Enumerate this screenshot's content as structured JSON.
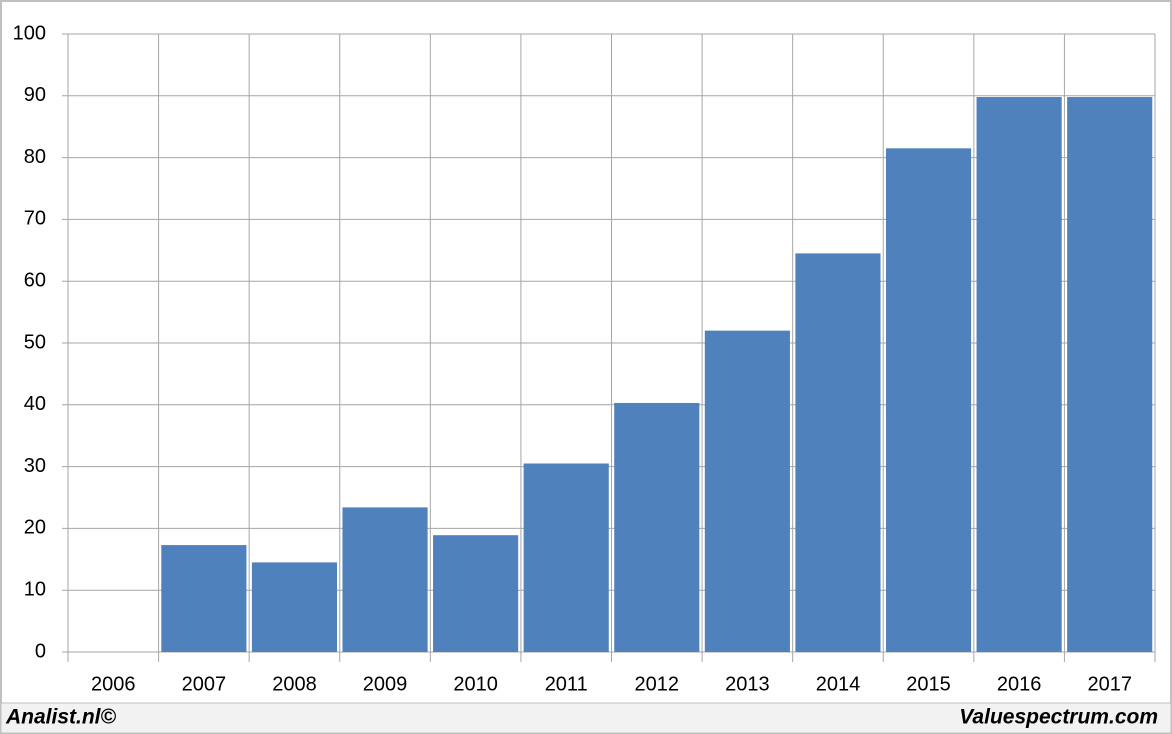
{
  "chart_data": {
    "type": "bar",
    "categories": [
      "2006",
      "2007",
      "2008",
      "2009",
      "2010",
      "2011",
      "2012",
      "2013",
      "2014",
      "2015",
      "2016",
      "2017"
    ],
    "values": [
      null,
      17.3,
      14.5,
      23.4,
      18.9,
      30.5,
      40.3,
      52,
      64.5,
      81.5,
      89.8,
      89.8
    ],
    "color": "#4f81bd",
    "ylim": [
      0,
      100
    ],
    "yticks": [
      0,
      10,
      20,
      30,
      40,
      50,
      60,
      70,
      80,
      90,
      100
    ],
    "grid": true
  },
  "footer": {
    "left": "Analist.nl©",
    "right": "Valuespectrum.com"
  }
}
